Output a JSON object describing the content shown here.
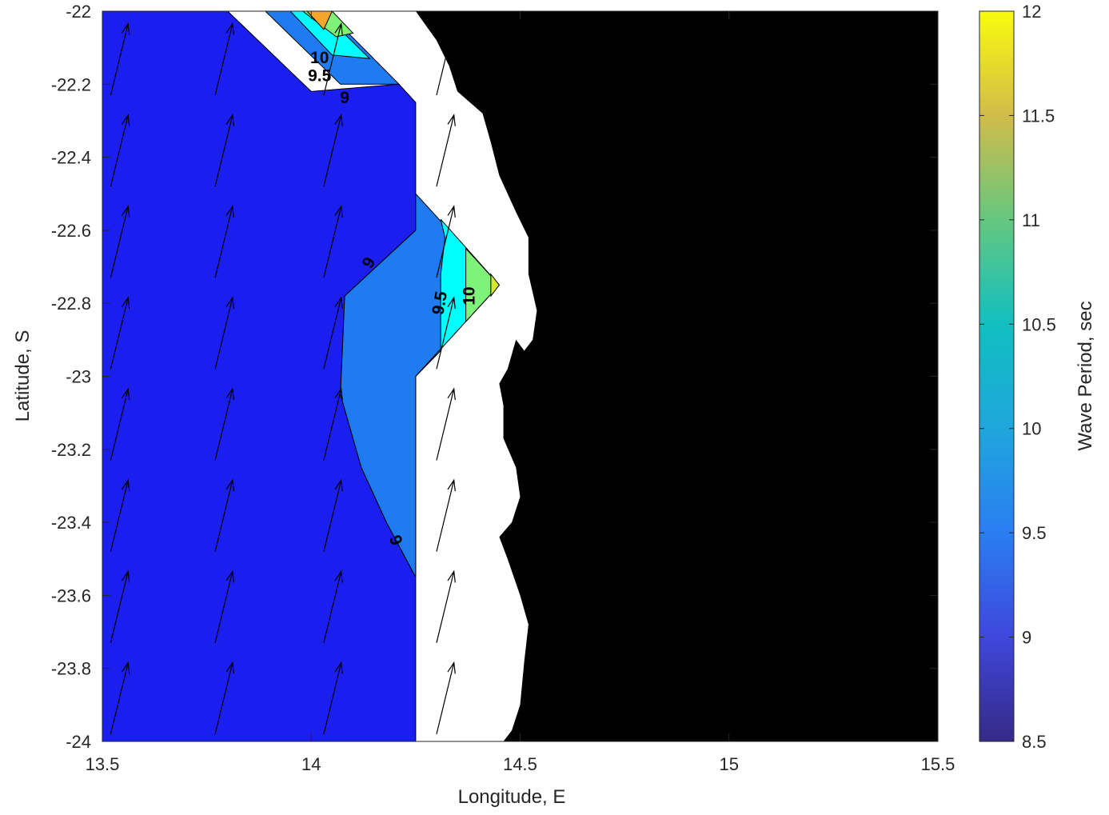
{
  "chart_data": {
    "type": "contour",
    "title": "",
    "xlabel": "Longitude, E",
    "ylabel": "Latitude, S",
    "xlim": [
      13.5,
      15.5
    ],
    "ylim": [
      -24,
      -22
    ],
    "xticks": [
      13.5,
      14,
      14.5,
      15,
      15.5
    ],
    "xtick_labels": [
      "13.5",
      "14",
      "14.5",
      "15",
      "15.5"
    ],
    "yticks": [
      -22,
      -22.2,
      -22.4,
      -22.6,
      -22.8,
      -23,
      -23.2,
      -23.4,
      -23.6,
      -23.8,
      -24
    ],
    "ytick_labels": [
      "-22",
      "-22.2",
      "-22.4",
      "-22.6",
      "-22.8",
      "-23",
      "-23.2",
      "-23.4",
      "-23.6",
      "-23.8",
      "-24"
    ],
    "grid": false,
    "land_color": "#000000",
    "colorbar": {
      "label": "Wave Period, sec",
      "range": [
        8.5,
        12
      ],
      "ticks": [
        8.5,
        9,
        9.5,
        10,
        10.5,
        11,
        11.5,
        12
      ],
      "tick_labels": [
        "8.5",
        "9",
        "9.5",
        "10",
        "10.5",
        "11",
        "11.5",
        "12"
      ],
      "colormap": "parula"
    },
    "contour_levels": [
      9,
      9.5,
      10,
      10.5,
      11,
      11.5,
      12
    ],
    "filled_regions": [
      {
        "level": 8.5,
        "polygon": [
          [
            13.5,
            -22
          ],
          [
            13.8,
            -22
          ],
          [
            14,
            -22.22
          ],
          [
            14.21,
            -22.2
          ],
          [
            14.25,
            -22.25
          ],
          [
            14.25,
            -23.55
          ],
          [
            14.18,
            -23.4
          ],
          [
            14.12,
            -23.25
          ],
          [
            14.07,
            -23.05
          ],
          [
            14.08,
            -22.78
          ],
          [
            14.25,
            -22.6
          ],
          [
            14.25,
            -23.55
          ],
          [
            14.25,
            -24
          ],
          [
            13.5,
            -24
          ]
        ]
      },
      {
        "level": 9,
        "polygon": [
          [
            14.25,
            -22.5
          ],
          [
            14.25,
            -22.6
          ],
          [
            14.08,
            -22.78
          ],
          [
            14.07,
            -23.05
          ],
          [
            14.12,
            -23.25
          ],
          [
            14.18,
            -23.4
          ],
          [
            14.25,
            -23.55
          ],
          [
            14.25,
            -23
          ],
          [
            14.45,
            -22.75
          ]
        ]
      },
      {
        "level": 9,
        "polygon": [
          [
            13.89,
            -22
          ],
          [
            14.07,
            -22.2
          ],
          [
            14.21,
            -22.2
          ],
          [
            14.08,
            -22.05
          ],
          [
            14.03,
            -22
          ]
        ]
      },
      {
        "level": 9.5,
        "polygon": [
          [
            14.31,
            -22.57
          ],
          [
            14.32,
            -22.62
          ],
          [
            14.31,
            -22.72
          ],
          [
            14.31,
            -22.93
          ],
          [
            14.25,
            -23
          ],
          [
            14.25,
            -23
          ],
          [
            14.45,
            -22.75
          ]
        ]
      },
      {
        "level": 9.5,
        "polygon": [
          [
            13.95,
            -22
          ],
          [
            14.05,
            -22.12
          ],
          [
            14.14,
            -22.13
          ],
          [
            14.06,
            -22.04
          ],
          [
            14.03,
            -22
          ]
        ]
      },
      {
        "level": 10,
        "polygon": [
          [
            14.37,
            -22.65
          ],
          [
            14.37,
            -22.85
          ],
          [
            14.45,
            -22.75
          ]
        ]
      },
      {
        "level": 10,
        "polygon": [
          [
            13.98,
            -22
          ],
          [
            14.06,
            -22.07
          ],
          [
            14.1,
            -22.06
          ],
          [
            14.05,
            -22
          ]
        ]
      },
      {
        "level": 10.5,
        "polygon": [
          [
            14.43,
            -22.72
          ],
          [
            14.43,
            -22.78
          ],
          [
            14.45,
            -22.75
          ]
        ]
      },
      {
        "level": 11.5,
        "polygon": [
          [
            13.99,
            -22
          ],
          [
            14.03,
            -22.05
          ],
          [
            14.05,
            -22
          ]
        ]
      }
    ],
    "contour_labels": [
      {
        "text": "10",
        "x": 14.02,
        "y": -22.13,
        "rotate": 0
      },
      {
        "text": "9.5",
        "x": 14.02,
        "y": -22.18,
        "rotate": 0
      },
      {
        "text": "9",
        "x": 14.08,
        "y": -22.24,
        "rotate": 0
      },
      {
        "text": "9",
        "x": 14.14,
        "y": -22.69,
        "rotate": -60
      },
      {
        "text": "9.5",
        "x": 14.31,
        "y": -22.8,
        "rotate": -80
      },
      {
        "text": "10",
        "x": 14.38,
        "y": -22.78,
        "rotate": -90
      },
      {
        "text": "9",
        "x": 14.2,
        "y": -23.45,
        "rotate": 70
      }
    ],
    "vectors": {
      "lons": [
        13.52,
        13.77,
        14.03,
        14.3
      ],
      "lats": [
        -22.13,
        -22.38,
        -22.63,
        -22.88,
        -23.13,
        -23.38,
        -23.63,
        -23.88
      ],
      "direction_deg_from_north": 12,
      "note_arrow_length_lat": 0.2
    }
  }
}
